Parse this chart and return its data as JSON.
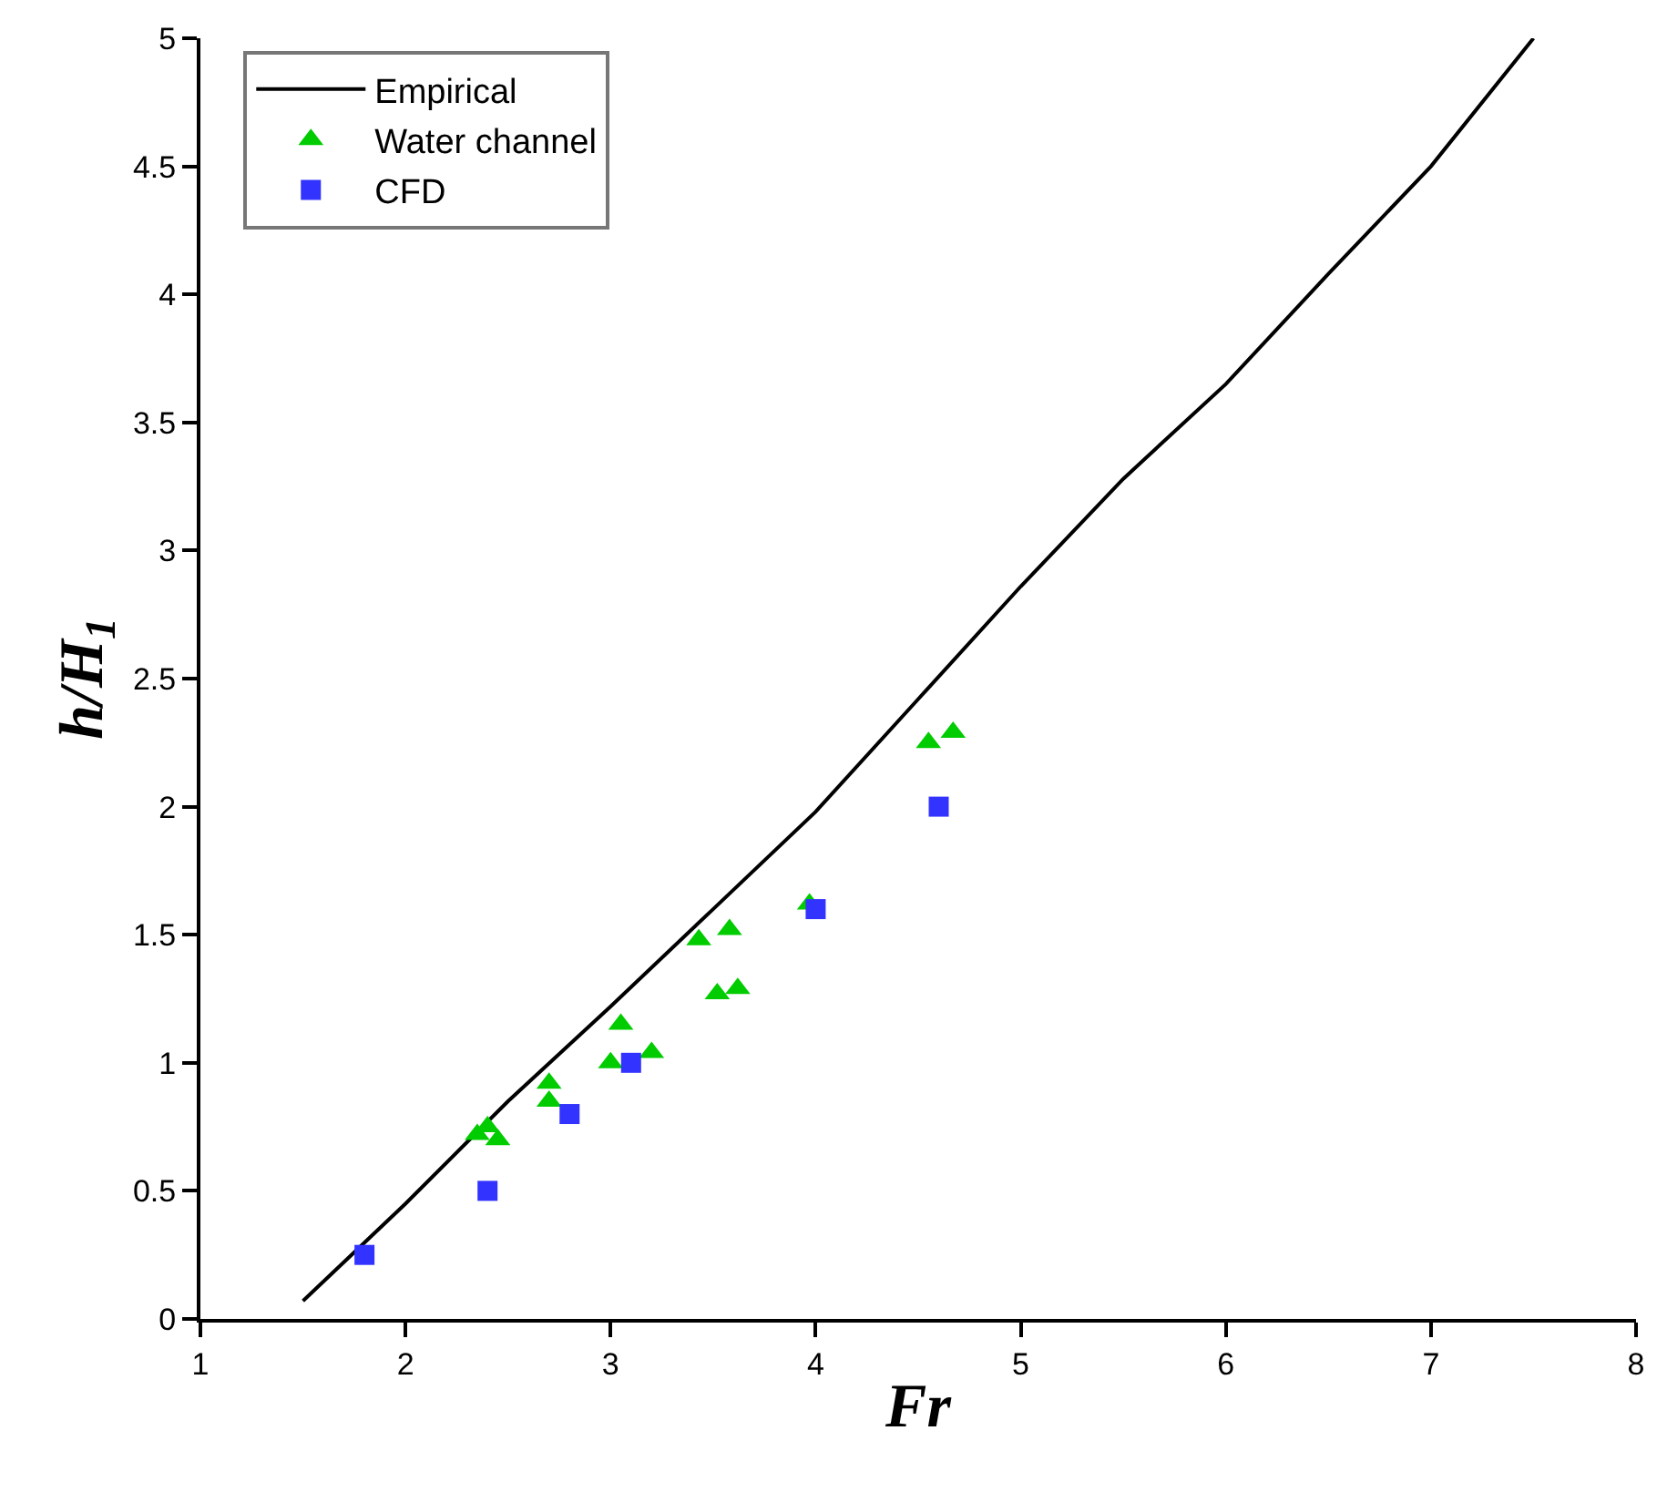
{
  "chart_data": {
    "type": "scatter",
    "xlabel": "Fr",
    "ylabel": "h/H$_{1}$",
    "xlim": [
      1,
      8
    ],
    "xticks": [
      1,
      2,
      3,
      4,
      5,
      6,
      7,
      8
    ],
    "ylim": [
      0,
      5
    ],
    "yticks": [
      0,
      0.5,
      1,
      1.5,
      2,
      2.5,
      3,
      3.5,
      4,
      4.5,
      5
    ],
    "legend": "top left",
    "series": [
      {
        "name": "Empirical",
        "type": "line",
        "color": "#000000",
        "marker": "none",
        "line_style": "solid",
        "x": [
          1.5,
          2,
          2.5,
          3,
          3.5,
          4,
          4.5,
          5,
          5.5,
          6,
          6.5,
          7,
          7.5
        ],
        "values": [
          0.07,
          0.45,
          0.85,
          1.22,
          1.6,
          1.98,
          2.42,
          2.86,
          3.28,
          3.65,
          4.08,
          4.5,
          5.0
        ]
      },
      {
        "name": "Water channel",
        "color": "#00cc00",
        "marker": "triangle",
        "x": [
          2.35,
          2.4,
          2.45,
          2.7,
          2.7,
          3.05,
          3.0,
          3.2,
          3.43,
          3.58,
          3.52,
          3.62,
          3.97,
          4.55,
          4.67
        ],
        "values": [
          0.72,
          0.75,
          0.7,
          0.92,
          0.85,
          1.15,
          1.0,
          1.04,
          1.48,
          1.52,
          1.27,
          1.29,
          1.62,
          2.25,
          2.29
        ]
      },
      {
        "name": "CFD",
        "color": "#3333ff",
        "marker": "square",
        "x": [
          1.8,
          2.4,
          2.8,
          3.1,
          4.0,
          4.6
        ],
        "values": [
          0.25,
          0.5,
          0.8,
          1.0,
          1.6,
          2.0
        ]
      }
    ]
  }
}
